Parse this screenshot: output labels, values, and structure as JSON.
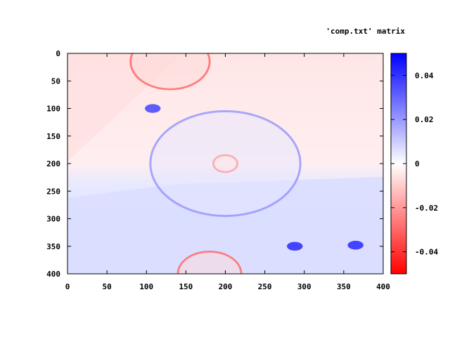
{
  "chart_data": {
    "type": "heatmap",
    "title": "'comp.txt' matrix",
    "xlabel": "",
    "ylabel": "",
    "xlim": [
      0,
      400
    ],
    "ylim": [
      0,
      400
    ],
    "y_inverted": true,
    "x_ticks": [
      0,
      50,
      100,
      150,
      200,
      250,
      300,
      350,
      400
    ],
    "y_ticks": [
      0,
      50,
      100,
      150,
      200,
      250,
      300,
      350,
      400
    ],
    "colorbar": {
      "range": [
        -0.05,
        0.05
      ],
      "ticks": [
        0.04,
        0.02,
        0,
        -0.02,
        -0.04
      ],
      "tick_labels": [
        "0.04",
        "0.02",
        "0",
        "-0.02",
        "-0.04"
      ],
      "colors": {
        "min": "#ff0000",
        "mid": "#ffffff",
        "max": "#0000ff"
      }
    },
    "features": [
      {
        "kind": "background",
        "note": "upper region slightly negative",
        "value": -0.008
      },
      {
        "kind": "background",
        "note": "lower region slightly positive",
        "value": 0.01
      },
      {
        "kind": "ring",
        "cx": 130,
        "cy": 15,
        "r": 50,
        "value": -0.03
      },
      {
        "kind": "blob",
        "cx": 108,
        "cy": 100,
        "r": 10,
        "value": 0.035
      },
      {
        "kind": "ring",
        "cx": 200,
        "cy": 200,
        "r": 95,
        "value": 0.02
      },
      {
        "kind": "ring",
        "cx": 200,
        "cy": 200,
        "r": 15,
        "value": -0.02
      },
      {
        "kind": "blob",
        "cx": 288,
        "cy": 350,
        "r": 10,
        "value": 0.04
      },
      {
        "kind": "blob",
        "cx": 365,
        "cy": 348,
        "r": 10,
        "value": 0.04
      },
      {
        "kind": "ring",
        "cx": 180,
        "cy": 400,
        "r": 40,
        "value": -0.03
      }
    ]
  }
}
